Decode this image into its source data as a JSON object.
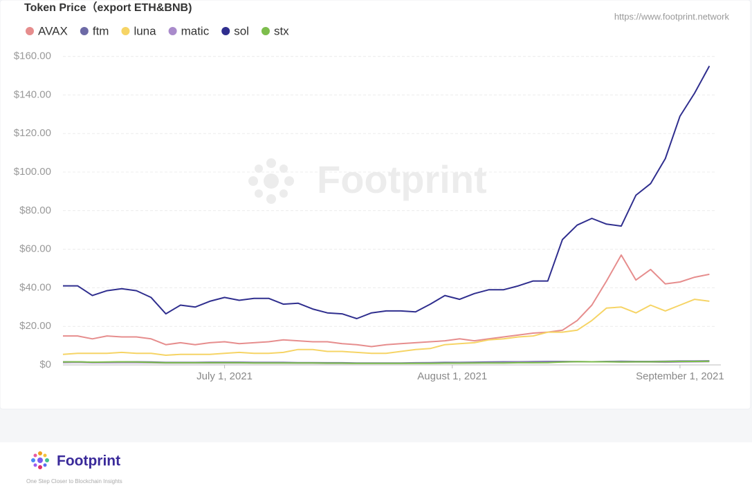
{
  "chart_data": {
    "type": "line",
    "title": "Token Price（export ETH&BNB)",
    "source": "https://www.footprint.network",
    "watermark": "Footprint",
    "x": [
      "2021-06-09",
      "2021-06-11",
      "2021-06-13",
      "2021-06-15",
      "2021-06-17",
      "2021-06-19",
      "2021-06-21",
      "2021-06-23",
      "2021-06-25",
      "2021-06-27",
      "2021-06-29",
      "2021-07-01",
      "2021-07-03",
      "2021-07-05",
      "2021-07-07",
      "2021-07-09",
      "2021-07-11",
      "2021-07-13",
      "2021-07-15",
      "2021-07-17",
      "2021-07-19",
      "2021-07-21",
      "2021-07-23",
      "2021-07-25",
      "2021-07-27",
      "2021-07-29",
      "2021-07-31",
      "2021-08-02",
      "2021-08-04",
      "2021-08-06",
      "2021-08-08",
      "2021-08-10",
      "2021-08-12",
      "2021-08-14",
      "2021-08-16",
      "2021-08-18",
      "2021-08-20",
      "2021-08-22",
      "2021-08-24",
      "2021-08-26",
      "2021-08-28",
      "2021-08-30",
      "2021-09-01",
      "2021-09-03",
      "2021-09-05"
    ],
    "xlim": [
      "2021-06-09",
      "2021-09-06"
    ],
    "xticks": [
      {
        "value": "2021-07-01",
        "label": "July 1, 2021"
      },
      {
        "value": "2021-08-01",
        "label": "August 1, 2021"
      },
      {
        "value": "2021-09-01",
        "label": "September 1, 2021"
      }
    ],
    "ylim": [
      0,
      162
    ],
    "yticks": [
      {
        "value": 0,
        "label": "$0"
      },
      {
        "value": 20,
        "label": "$20.00"
      },
      {
        "value": 40,
        "label": "$40.00"
      },
      {
        "value": 60,
        "label": "$60.00"
      },
      {
        "value": 80,
        "label": "$80.00"
      },
      {
        "value": 100,
        "label": "$100.00"
      },
      {
        "value": 120,
        "label": "$120.00"
      },
      {
        "value": 140,
        "label": "$140.00"
      },
      {
        "value": 160,
        "label": "$160.00"
      }
    ],
    "grid": true,
    "legend": "top-left",
    "series": [
      {
        "name": "AVAX",
        "color": "#e68d8d",
        "values": [
          15,
          15,
          13.5,
          15,
          14.5,
          14.5,
          13.5,
          10.5,
          11.5,
          10.5,
          11.5,
          12,
          11,
          11.5,
          12,
          13,
          12.5,
          12,
          12,
          11,
          10.5,
          9.5,
          10.5,
          11,
          11.5,
          12,
          12.5,
          13.5,
          12.5,
          13.5,
          14.5,
          15.5,
          16.5,
          17,
          18,
          23,
          31,
          43.5,
          57,
          44,
          49.5,
          42,
          43,
          45.5,
          47
        ]
      },
      {
        "name": "ftm",
        "color": "#6d6aa6",
        "values": [
          1.6,
          1.6,
          1.4,
          1.4,
          1.6,
          1.6,
          1.5,
          1.3,
          1.3,
          1.3,
          1.4,
          1.4,
          1.4,
          1.3,
          1.3,
          1.3,
          1.2,
          1.2,
          1.1,
          1.1,
          1,
          1,
          1,
          1,
          1.1,
          1.2,
          1.3,
          1.3,
          1.4,
          1.5,
          1.6,
          1.6,
          1.7,
          1.8,
          1.8,
          1.7,
          1.6,
          1.8,
          1.9,
          1.8,
          1.8,
          1.9,
          2,
          2,
          2.1
        ]
      },
      {
        "name": "luna",
        "color": "#f6d465",
        "values": [
          5.5,
          6,
          6,
          6,
          6.5,
          6,
          6,
          5,
          5.5,
          5.5,
          5.5,
          6,
          6.5,
          6,
          6,
          6.5,
          8,
          8,
          7,
          7,
          6.5,
          6,
          6,
          7,
          8,
          8.5,
          10.5,
          11,
          11.5,
          13,
          13.5,
          14.5,
          15,
          17,
          17,
          18,
          23,
          29.5,
          30,
          27,
          31,
          28,
          31,
          34,
          33
        ]
      },
      {
        "name": "matic",
        "color": "#a98bcb",
        "values": [
          1.2,
          1.3,
          1.1,
          1.1,
          1.2,
          1.2,
          1.1,
          1,
          1,
          1,
          1,
          1,
          1,
          1,
          1,
          1,
          0.9,
          0.9,
          0.8,
          0.8,
          0.8,
          0.8,
          0.8,
          0.8,
          0.9,
          0.9,
          0.9,
          1,
          1,
          1.1,
          1.2,
          1.3,
          1.3,
          1.4,
          1.5,
          1.6,
          1.6,
          1.6,
          1.5,
          1.5,
          1.5,
          1.4,
          1.5,
          1.6,
          1.7
        ]
      },
      {
        "name": "sol",
        "color": "#2f2e8e",
        "values": [
          41,
          41,
          36,
          38.5,
          39.5,
          38.5,
          35,
          26.5,
          31,
          30,
          33,
          35,
          33.5,
          34.5,
          34.5,
          31.5,
          32,
          29,
          27,
          26.5,
          24,
          27,
          28,
          28,
          27.5,
          31.5,
          36,
          34,
          37,
          39,
          39,
          41,
          43.5,
          43.5,
          65,
          72.5,
          76,
          73,
          72,
          88,
          94,
          107,
          129,
          141,
          155
        ]
      },
      {
        "name": "stx",
        "color": "#7dbd4c",
        "values": [
          1.5,
          1.6,
          1.4,
          1.5,
          1.6,
          1.5,
          1.3,
          1.1,
          1.1,
          1.1,
          1.1,
          1.1,
          1.1,
          1,
          1,
          1,
          1,
          1,
          0.9,
          0.9,
          0.8,
          0.8,
          0.8,
          0.8,
          0.8,
          0.8,
          0.9,
          0.9,
          1,
          1,
          1,
          1.1,
          1.1,
          1.2,
          1.5,
          1.7,
          1.6,
          1.6,
          1.5,
          1.6,
          1.6,
          1.7,
          1.8,
          1.8,
          1.9
        ]
      }
    ]
  },
  "footer": {
    "brand": "Footprint",
    "tagline": "One Step Closer to Blockchain Insights"
  }
}
